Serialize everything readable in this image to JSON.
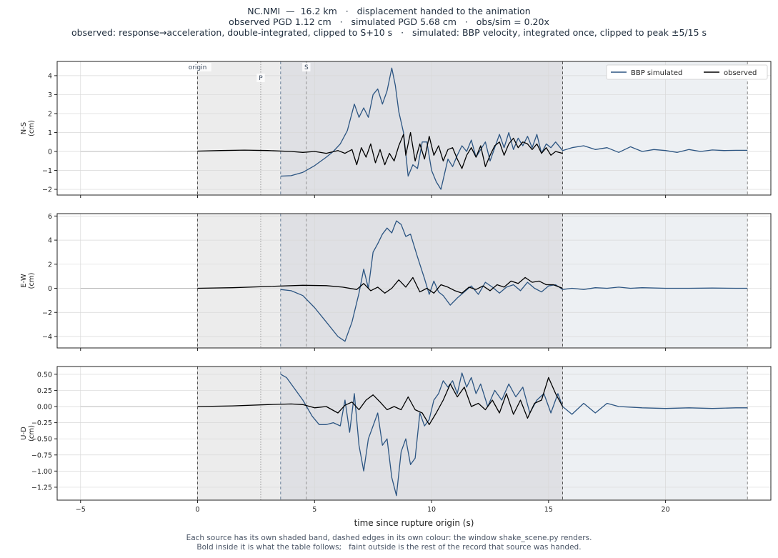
{
  "header": {
    "line1": "NC.NMI  —  16.2 km   ·   displacement handed to the animation",
    "line2": "observed PGD 1.12 cm   ·   simulated PGD 5.68 cm   ·   obs/sim = 0.20x",
    "line3": "observed: response→acceleration, double-integrated, clipped to S+10 s   ·   simulated: BBP velocity, integrated once, clipped to peak ±5/15 s"
  },
  "footnote": {
    "line1": "Each source has its own shaded band, dashed edges in its own colour: the window shake_scene.py renders.",
    "line2": "Bold inside it is what the table follows;   faint outside is the rest of the record that source was handed."
  },
  "colors": {
    "simulated": "#2c5582",
    "observed": "#000000",
    "faint": "#b8b8b8",
    "band_observed": "#ececec",
    "band_overlap": "#dfe0e4",
    "band_simulated": "#edf0f3",
    "obs_edge": "#555555",
    "sim_edge": "#6a7f9a"
  },
  "chart_data": {
    "type": "line",
    "xlabel": "time since rupture origin (s)",
    "xlim": [
      -6,
      24.5
    ],
    "xticks": [
      -5,
      0,
      5,
      10,
      15,
      20
    ],
    "legend": {
      "placement": "top-right",
      "entries": [
        "BBP simulated",
        "observed"
      ]
    },
    "markers": [
      {
        "label": "origin",
        "t": 0,
        "style": "dashed"
      },
      {
        "label": "P",
        "t": 2.7,
        "style": "dotted"
      },
      {
        "label": "S",
        "t": 4.65,
        "style": "dashed"
      }
    ],
    "windows": {
      "observed": [
        0,
        15.6
      ],
      "simulated": [
        3.55,
        23.5
      ]
    },
    "panels": [
      {
        "name": "N-S",
        "ylabel": [
          "N-S",
          "(cm)"
        ],
        "ylim": [
          -2.3,
          4.75
        ],
        "yticks": [
          -2,
          -1,
          0,
          1,
          2,
          3,
          4
        ],
        "yticklabels": [
          "−2",
          "−1",
          "0",
          "1",
          "2",
          "3",
          "4"
        ],
        "series": [
          {
            "name": "BBP simulated",
            "role": "simulated",
            "t": [
              3.55,
              4.0,
              4.5,
              5.0,
              5.5,
              5.8,
              6.1,
              6.4,
              6.7,
              6.9,
              7.1,
              7.3,
              7.5,
              7.7,
              7.9,
              8.1,
              8.3,
              8.45,
              8.6,
              8.8,
              9.0,
              9.2,
              9.4,
              9.6,
              9.8,
              10.0,
              10.2,
              10.4,
              10.55,
              10.7,
              10.9,
              11.1,
              11.3,
              11.5,
              11.7,
              11.9,
              12.1,
              12.3,
              12.5,
              12.7,
              12.9,
              13.1,
              13.3,
              13.5,
              13.7,
              13.9,
              14.1,
              14.3,
              14.5,
              14.7,
              14.9,
              15.1,
              15.3,
              15.6,
              16.0,
              16.5,
              17.0,
              17.5,
              18.0,
              18.5,
              19.0,
              19.5,
              20.0,
              20.5,
              21.0,
              21.5,
              22.0,
              22.5,
              23.0,
              23.5
            ],
            "v": [
              -1.3,
              -1.28,
              -1.1,
              -0.75,
              -0.3,
              0.0,
              0.4,
              1.1,
              2.5,
              1.8,
              2.3,
              1.8,
              3.0,
              3.3,
              2.5,
              3.2,
              4.4,
              3.5,
              2.1,
              1.0,
              -1.3,
              -0.7,
              -0.9,
              0.5,
              0.5,
              -1.0,
              -1.6,
              -2.0,
              -1.2,
              -0.4,
              -0.8,
              -0.2,
              0.3,
              0.0,
              0.6,
              -0.3,
              0.1,
              0.5,
              -0.5,
              0.2,
              0.9,
              0.2,
              1.0,
              0.1,
              0.7,
              0.3,
              0.8,
              0.2,
              0.9,
              -0.1,
              0.4,
              0.2,
              0.5,
              0.05,
              0.2,
              0.3,
              0.1,
              0.2,
              -0.05,
              0.25,
              0.0,
              0.1,
              0.05,
              -0.05,
              0.1,
              0.0,
              0.08,
              0.05,
              0.06,
              0.06
            ]
          },
          {
            "name": "observed",
            "role": "observed",
            "t": [
              -5,
              -2.5,
              0,
              1.0,
              2.0,
              3.0,
              4.0,
              4.5,
              5.0,
              5.5,
              6.0,
              6.3,
              6.6,
              6.8,
              7.0,
              7.2,
              7.4,
              7.6,
              7.8,
              8.0,
              8.2,
              8.4,
              8.6,
              8.8,
              8.9,
              9.1,
              9.3,
              9.5,
              9.7,
              9.9,
              10.1,
              10.3,
              10.5,
              10.7,
              10.9,
              11.1,
              11.3,
              11.5,
              11.7,
              11.9,
              12.1,
              12.3,
              12.5,
              12.7,
              12.9,
              13.1,
              13.3,
              13.5,
              13.7,
              13.9,
              14.1,
              14.3,
              14.5,
              14.7,
              14.9,
              15.1,
              15.3,
              15.6
            ],
            "v": [
              0.0,
              0.0,
              0.02,
              0.05,
              0.07,
              0.05,
              0.0,
              -0.05,
              0.0,
              -0.1,
              0.05,
              -0.1,
              0.1,
              -0.7,
              0.2,
              -0.3,
              0.4,
              -0.6,
              0.1,
              -0.7,
              -0.1,
              -0.5,
              0.3,
              0.9,
              -0.2,
              1.0,
              -0.5,
              0.4,
              -0.4,
              0.8,
              -0.2,
              0.3,
              -0.5,
              0.1,
              0.2,
              -0.4,
              -0.9,
              -0.2,
              0.2,
              -0.3,
              0.3,
              -0.8,
              -0.2,
              0.3,
              0.5,
              -0.2,
              0.4,
              0.7,
              0.2,
              0.5,
              0.4,
              0.1,
              0.4,
              -0.1,
              0.2,
              -0.2,
              0.0,
              -0.1
            ]
          }
        ]
      },
      {
        "name": "E-W",
        "ylabel": [
          "E-W",
          "(cm)"
        ],
        "ylim": [
          -4.95,
          6.2
        ],
        "yticks": [
          -4,
          -2,
          0,
          2,
          4,
          6
        ],
        "yticklabels": [
          "−4",
          "−2",
          "0",
          "2",
          "4",
          "6"
        ],
        "series": [
          {
            "name": "BBP simulated",
            "role": "simulated",
            "t": [
              3.55,
              4.0,
              4.5,
              5.0,
              5.5,
              6.0,
              6.3,
              6.6,
              6.9,
              7.1,
              7.3,
              7.5,
              7.7,
              7.9,
              8.1,
              8.3,
              8.5,
              8.7,
              8.9,
              9.1,
              9.4,
              9.7,
              9.9,
              10.1,
              10.3,
              10.5,
              10.8,
              11.1,
              11.4,
              11.7,
              12.0,
              12.3,
              12.6,
              12.9,
              13.2,
              13.5,
              13.8,
              14.1,
              14.4,
              14.7,
              15.0,
              15.3,
              15.6,
              16.0,
              16.5,
              17.0,
              17.5,
              18.0,
              18.5,
              19.0,
              20.0,
              21.0,
              22.0,
              23.0,
              23.5
            ],
            "v": [
              -0.1,
              -0.2,
              -0.6,
              -1.6,
              -2.8,
              -4.0,
              -4.4,
              -2.8,
              -0.4,
              1.6,
              0.0,
              3.0,
              3.7,
              4.5,
              5.0,
              4.6,
              5.6,
              5.3,
              4.3,
              4.5,
              2.6,
              0.8,
              -0.5,
              0.6,
              -0.3,
              -0.6,
              -1.4,
              -0.8,
              -0.3,
              0.2,
              -0.5,
              0.5,
              0.1,
              -0.4,
              0.1,
              0.3,
              -0.2,
              0.5,
              0.0,
              -0.3,
              0.2,
              0.3,
              -0.1,
              0.0,
              -0.1,
              0.05,
              0.0,
              0.1,
              0.0,
              0.05,
              0.0,
              0.0,
              0.02,
              0.0,
              0.0
            ]
          },
          {
            "name": "observed",
            "role": "observed",
            "t": [
              -5,
              -2.5,
              0,
              1.5,
              3.0,
              4.5,
              5.5,
              6.2,
              6.8,
              7.1,
              7.4,
              7.7,
              8.0,
              8.3,
              8.6,
              8.9,
              9.2,
              9.5,
              9.8,
              10.1,
              10.4,
              10.7,
              11.0,
              11.3,
              11.6,
              11.9,
              12.2,
              12.5,
              12.8,
              13.1,
              13.4,
              13.7,
              14.0,
              14.3,
              14.6,
              14.9,
              15.2,
              15.6
            ],
            "v": [
              0.0,
              0.0,
              0.0,
              0.05,
              0.15,
              0.25,
              0.22,
              0.1,
              -0.1,
              0.4,
              -0.2,
              0.1,
              -0.4,
              0.0,
              0.7,
              0.1,
              0.9,
              -0.3,
              0.0,
              -0.4,
              0.3,
              0.1,
              -0.2,
              -0.4,
              0.1,
              -0.1,
              0.2,
              -0.2,
              0.3,
              0.1,
              0.6,
              0.4,
              0.9,
              0.5,
              0.6,
              0.3,
              0.3,
              0.0
            ]
          }
        ]
      },
      {
        "name": "U-D",
        "ylabel": [
          "U-D",
          "(cm)"
        ],
        "ylim": [
          -1.45,
          0.62
        ],
        "yticks": [
          -1.25,
          -1.0,
          -0.75,
          -0.5,
          -0.25,
          0.0,
          0.25,
          0.5
        ],
        "yticklabels": [
          "−1.25",
          "−1.00",
          "−0.75",
          "−0.50",
          "−0.25",
          "0.00",
          "0.25",
          "0.50"
        ],
        "series": [
          {
            "name": "BBP simulated",
            "role": "simulated",
            "t": [
              3.55,
              3.8,
              4.1,
              4.5,
              4.9,
              5.2,
              5.5,
              5.8,
              6.1,
              6.3,
              6.5,
              6.7,
              6.9,
              7.1,
              7.3,
              7.5,
              7.7,
              7.9,
              8.1,
              8.3,
              8.5,
              8.7,
              8.9,
              9.1,
              9.3,
              9.5,
              9.7,
              9.9,
              10.1,
              10.3,
              10.5,
              10.7,
              10.9,
              11.1,
              11.3,
              11.5,
              11.7,
              11.9,
              12.1,
              12.4,
              12.7,
              13.0,
              13.3,
              13.6,
              13.9,
              14.2,
              14.5,
              14.8,
              15.1,
              15.4,
              15.6,
              16.0,
              16.5,
              17.0,
              17.5,
              18.0,
              19.0,
              20.0,
              21.0,
              22.0,
              23.0,
              23.5
            ],
            "v": [
              0.5,
              0.45,
              0.3,
              0.1,
              -0.15,
              -0.28,
              -0.28,
              -0.25,
              -0.3,
              0.1,
              -0.4,
              0.2,
              -0.6,
              -1.0,
              -0.5,
              -0.3,
              -0.1,
              -0.6,
              -0.5,
              -1.1,
              -1.38,
              -0.7,
              -0.5,
              -0.9,
              -0.8,
              -0.1,
              -0.3,
              -0.2,
              0.1,
              0.2,
              0.4,
              0.3,
              0.4,
              0.2,
              0.52,
              0.3,
              0.45,
              0.2,
              0.35,
              0.0,
              0.25,
              0.1,
              0.35,
              0.15,
              0.3,
              -0.1,
              0.1,
              0.2,
              -0.1,
              0.2,
              0.0,
              -0.12,
              0.05,
              -0.1,
              0.05,
              0.0,
              -0.02,
              -0.03,
              -0.02,
              -0.03,
              -0.02,
              -0.02
            ]
          },
          {
            "name": "observed",
            "role": "observed",
            "t": [
              -5,
              -2.5,
              0,
              1.5,
              3.0,
              4.0,
              4.5,
              5.0,
              5.5,
              6.0,
              6.3,
              6.6,
              6.9,
              7.2,
              7.5,
              7.8,
              8.1,
              8.4,
              8.7,
              9.0,
              9.3,
              9.6,
              9.9,
              10.2,
              10.5,
              10.8,
              11.1,
              11.4,
              11.7,
              12.0,
              12.3,
              12.6,
              12.9,
              13.2,
              13.5,
              13.8,
              14.1,
              14.4,
              14.7,
              15.0,
              15.3,
              15.6
            ],
            "v": [
              0.0,
              0.0,
              0.0,
              0.01,
              0.03,
              0.04,
              0.03,
              -0.02,
              0.0,
              -0.1,
              0.02,
              0.07,
              -0.05,
              0.1,
              0.18,
              0.07,
              -0.05,
              0.0,
              -0.05,
              0.15,
              -0.05,
              -0.1,
              -0.28,
              -0.1,
              0.1,
              0.35,
              0.15,
              0.3,
              0.0,
              0.05,
              -0.05,
              0.1,
              -0.1,
              0.2,
              -0.12,
              0.1,
              -0.18,
              0.05,
              0.1,
              0.45,
              0.2,
              0.0
            ]
          }
        ]
      }
    ]
  }
}
